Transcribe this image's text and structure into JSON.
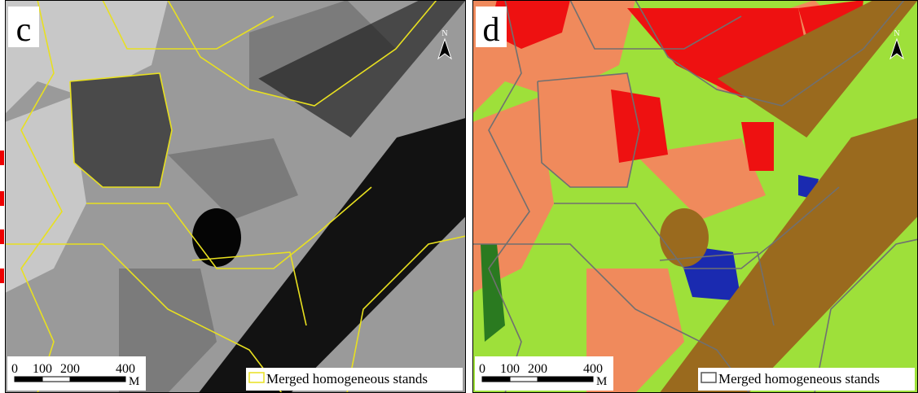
{
  "panels": [
    {
      "label": "c",
      "north": "N",
      "scale_bar": {
        "ticks": [
          0,
          100,
          200,
          400
        ],
        "unit": "M"
      },
      "legend": "Merged homogeneous stands"
    },
    {
      "label": "d",
      "north": "N",
      "scale_bar": {
        "ticks": [
          0,
          100,
          200,
          400
        ],
        "unit": "M"
      },
      "legend": "Merged homogeneous stands"
    }
  ]
}
